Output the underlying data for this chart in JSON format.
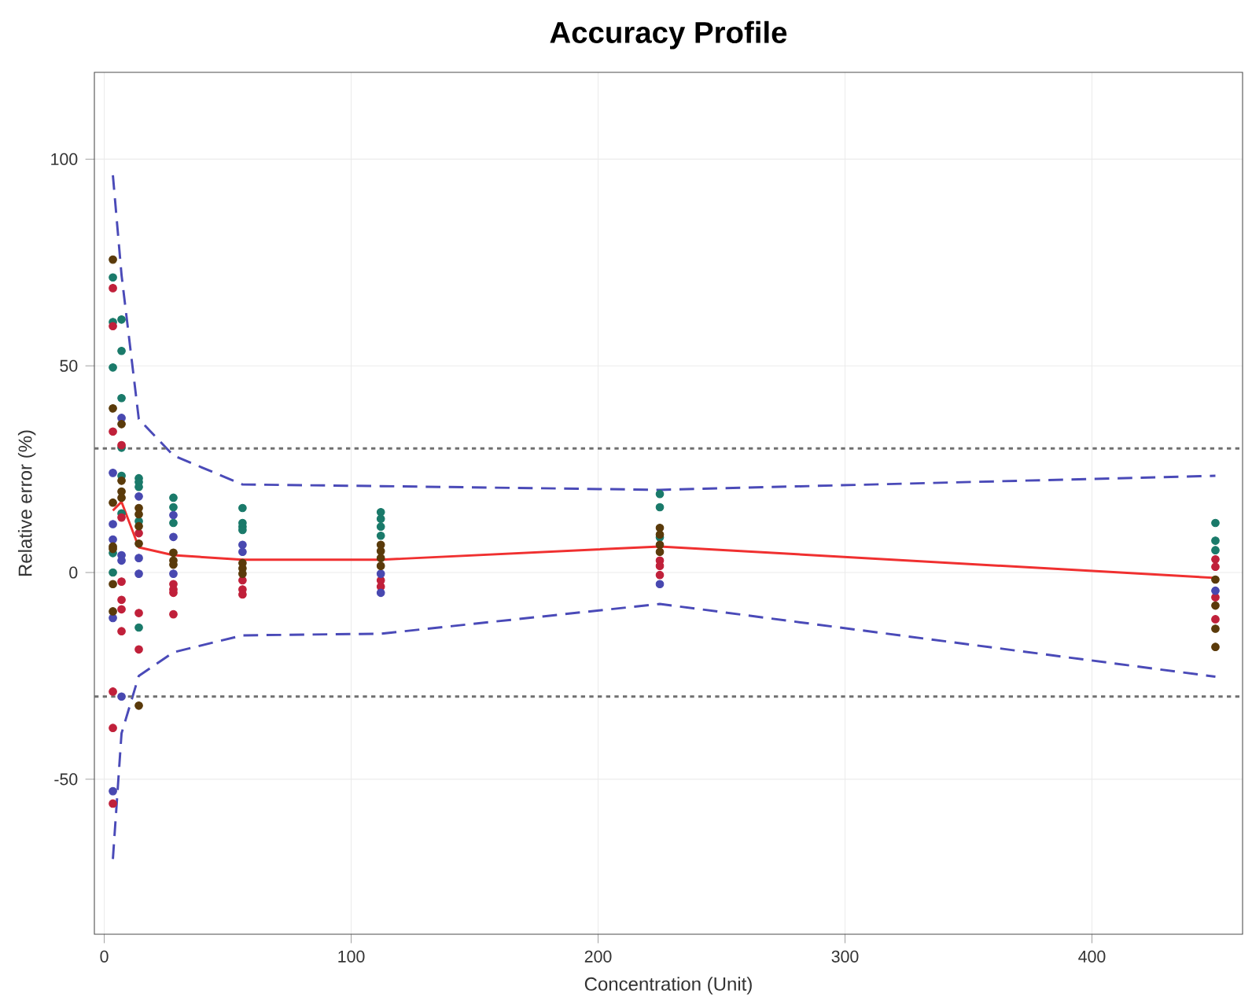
{
  "chart_data": {
    "type": "scatter",
    "title": "Accuracy Profile",
    "xlabel": "Concentration (Unit)",
    "ylabel": "Relative error (%)",
    "xlim": [
      -4,
      461
    ],
    "ylim": [
      -87.5,
      121
    ],
    "xticks": [
      0,
      100,
      200,
      300,
      400
    ],
    "yticks": [
      -50,
      0,
      50,
      100
    ],
    "grid": true,
    "marker": "circle",
    "series": [
      {
        "color": "#1a7a6a",
        "x": [
          3.5,
          3.5,
          3.5,
          3.5,
          3.5,
          7,
          7,
          7,
          7,
          7,
          7,
          14,
          14,
          14,
          14,
          14,
          28,
          28,
          28,
          56,
          56,
          56,
          56,
          112,
          112,
          112,
          112,
          225,
          225,
          225,
          450,
          450,
          450
        ],
        "values": [
          71.4,
          60.6,
          49.6,
          4.7,
          0,
          61.2,
          53.6,
          42.2,
          30.2,
          23.4,
          14.3,
          22.8,
          21.9,
          20.7,
          12.4,
          -13.3,
          18.1,
          15.8,
          12.0,
          15.6,
          12.0,
          11.1,
          10.3,
          14.6,
          13.0,
          11.1,
          8.9,
          19.0,
          15.8,
          8.5,
          12.0,
          7.7,
          5.4
        ]
      },
      {
        "color": "#c0203a",
        "x": [
          3.5,
          3.5,
          3.5,
          3.5,
          3.5,
          3.5,
          7,
          7,
          7,
          7,
          7,
          7,
          14,
          14,
          14,
          28,
          28,
          28,
          28,
          56,
          56,
          56,
          112,
          112,
          225,
          225,
          225,
          450,
          450,
          450,
          450
        ],
        "values": [
          68.8,
          59.6,
          34.1,
          -28.8,
          -37.6,
          -55.9,
          30.8,
          13.3,
          -2.2,
          -6.6,
          -8.9,
          -14.2,
          9.5,
          -9.8,
          -18.6,
          -2.8,
          -4.1,
          -4.9,
          -10.1,
          -1.9,
          -4.1,
          -5.3,
          -1.9,
          -3.4,
          2.9,
          1.6,
          -0.6,
          3.2,
          1.4,
          -6.0,
          -11.3
        ]
      },
      {
        "color": "#4848b0",
        "x": [
          3.5,
          3.5,
          3.5,
          3.5,
          3.5,
          7,
          7,
          7,
          7,
          14,
          14,
          14,
          28,
          28,
          28,
          56,
          56,
          112,
          112,
          225,
          450
        ],
        "values": [
          24.1,
          11.7,
          8.0,
          -11.0,
          -52.9,
          37.4,
          4.2,
          2.9,
          -30.0,
          18.4,
          3.5,
          -0.3,
          13.9,
          8.6,
          -0.3,
          6.7,
          5.0,
          -0.3,
          -4.9,
          -2.8,
          -4.4
        ]
      },
      {
        "color": "#5a3a0a",
        "x": [
          3.5,
          3.5,
          3.5,
          3.5,
          3.5,
          3.5,
          3.5,
          7,
          7,
          7,
          7,
          14,
          14,
          14,
          14,
          14,
          28,
          28,
          28,
          56,
          56,
          56,
          112,
          112,
          112,
          112,
          225,
          225,
          225,
          225,
          450,
          450,
          450,
          450
        ],
        "values": [
          75.7,
          39.7,
          16.9,
          6.3,
          5.7,
          -2.8,
          -9.4,
          35.9,
          22.2,
          19.6,
          18.1,
          15.6,
          14.1,
          11.2,
          7.0,
          -32.2,
          4.8,
          2.9,
          1.9,
          2.3,
          1.0,
          -0.3,
          6.7,
          5.2,
          3.5,
          1.6,
          10.8,
          9.2,
          6.7,
          5.0,
          -1.7,
          -8.0,
          -13.6,
          -18.0
        ]
      },
      {
        "type": "line",
        "color": "#f03030",
        "marker": "none",
        "line_style": "solid",
        "x": [
          3.5,
          7,
          14,
          28,
          56,
          112,
          225,
          450
        ],
        "values": [
          15.0,
          17.1,
          6.1,
          4.2,
          3.1,
          3.1,
          6.3,
          -1.3
        ]
      },
      {
        "type": "line",
        "color": "#4a4ab8",
        "marker": "none",
        "line_style": "dashed",
        "x": [
          3.5,
          7,
          14,
          28,
          56,
          112,
          225,
          450
        ],
        "values": [
          96.1,
          72.0,
          37.1,
          28.3,
          21.3,
          20.9,
          20.0,
          23.4
        ]
      },
      {
        "type": "line",
        "color": "#4a4ab8",
        "marker": "none",
        "line_style": "dashed",
        "x": [
          3.5,
          7,
          14,
          28,
          56,
          112,
          225,
          450
        ],
        "values": [
          -69.3,
          -38.9,
          -25.0,
          -19.3,
          -15.2,
          -14.8,
          -7.6,
          -25.2
        ]
      }
    ],
    "ref_lines": [
      {
        "axis": "y",
        "value": 30,
        "color": "#707070",
        "line_style": "dotted"
      },
      {
        "axis": "y",
        "value": -30,
        "color": "#707070",
        "line_style": "dotted"
      }
    ]
  }
}
